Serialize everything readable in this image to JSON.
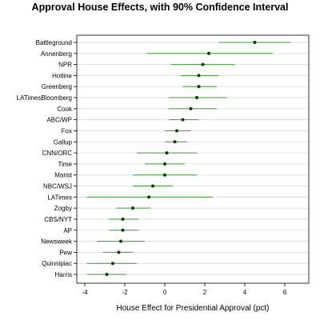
{
  "chart_data": {
    "type": "dotplot",
    "title": "Approval House Effects, with 90% Confidence Interval",
    "xlabel": "House Effect for Presidential Approval (pct)",
    "ylabel": "",
    "xlim": [
      -4.4,
      7.2
    ],
    "xticks": [
      -4,
      -2,
      0,
      2,
      4,
      6
    ],
    "grid": true,
    "point_color": "#004400",
    "interval_color": "#3a9a3a",
    "grid_color": "#d9d9d9",
    "series": [
      {
        "pollster": "Battleground",
        "estimate": 4.5,
        "lower": 2.7,
        "upper": 6.3
      },
      {
        "pollster": "Annenberg",
        "estimate": 2.2,
        "lower": -0.9,
        "upper": 5.4
      },
      {
        "pollster": "NPR",
        "estimate": 1.9,
        "lower": 0.3,
        "upper": 3.5
      },
      {
        "pollster": "Hotline",
        "estimate": 1.7,
        "lower": 0.8,
        "upper": 2.7
      },
      {
        "pollster": "Greenberg",
        "estimate": 1.7,
        "lower": 0.9,
        "upper": 2.6
      },
      {
        "pollster": "LATimesBloomberg",
        "estimate": 1.6,
        "lower": 0.2,
        "upper": 3.1
      },
      {
        "pollster": "Cook",
        "estimate": 1.3,
        "lower": 0.2,
        "upper": 2.6
      },
      {
        "pollster": "ABC/WP",
        "estimate": 0.9,
        "lower": 0.2,
        "upper": 1.7
      },
      {
        "pollster": "Fox",
        "estimate": 0.6,
        "lower": 0.0,
        "upper": 1.3
      },
      {
        "pollster": "Gallup",
        "estimate": 0.5,
        "lower": 0.0,
        "upper": 1.1
      },
      {
        "pollster": "CNN/ORC",
        "estimate": 0.1,
        "lower": -1.4,
        "upper": 1.6
      },
      {
        "pollster": "Time",
        "estimate": 0.0,
        "lower": -1.0,
        "upper": 1.0
      },
      {
        "pollster": "Marist",
        "estimate": 0.0,
        "lower": -1.6,
        "upper": 1.6
      },
      {
        "pollster": "NBC/WSJ",
        "estimate": -0.6,
        "lower": -1.6,
        "upper": 0.4
      },
      {
        "pollster": "LATimes",
        "estimate": -0.8,
        "lower": -3.9,
        "upper": 2.4
      },
      {
        "pollster": "Zogby",
        "estimate": -1.6,
        "lower": -2.4,
        "upper": -0.7
      },
      {
        "pollster": "CBS/NYT",
        "estimate": -2.1,
        "lower": -2.8,
        "upper": -1.3
      },
      {
        "pollster": "AP",
        "estimate": -2.1,
        "lower": -2.8,
        "upper": -1.3
      },
      {
        "pollster": "Newsweek",
        "estimate": -2.2,
        "lower": -3.4,
        "upper": -1.0
      },
      {
        "pollster": "Pew",
        "estimate": -2.3,
        "lower": -3.1,
        "upper": -1.6
      },
      {
        "pollster": "Quinnipiac",
        "estimate": -2.6,
        "lower": -3.9,
        "upper": -1.4
      },
      {
        "pollster": "Harris",
        "estimate": -2.9,
        "lower": -3.9,
        "upper": -1.9
      }
    ]
  }
}
